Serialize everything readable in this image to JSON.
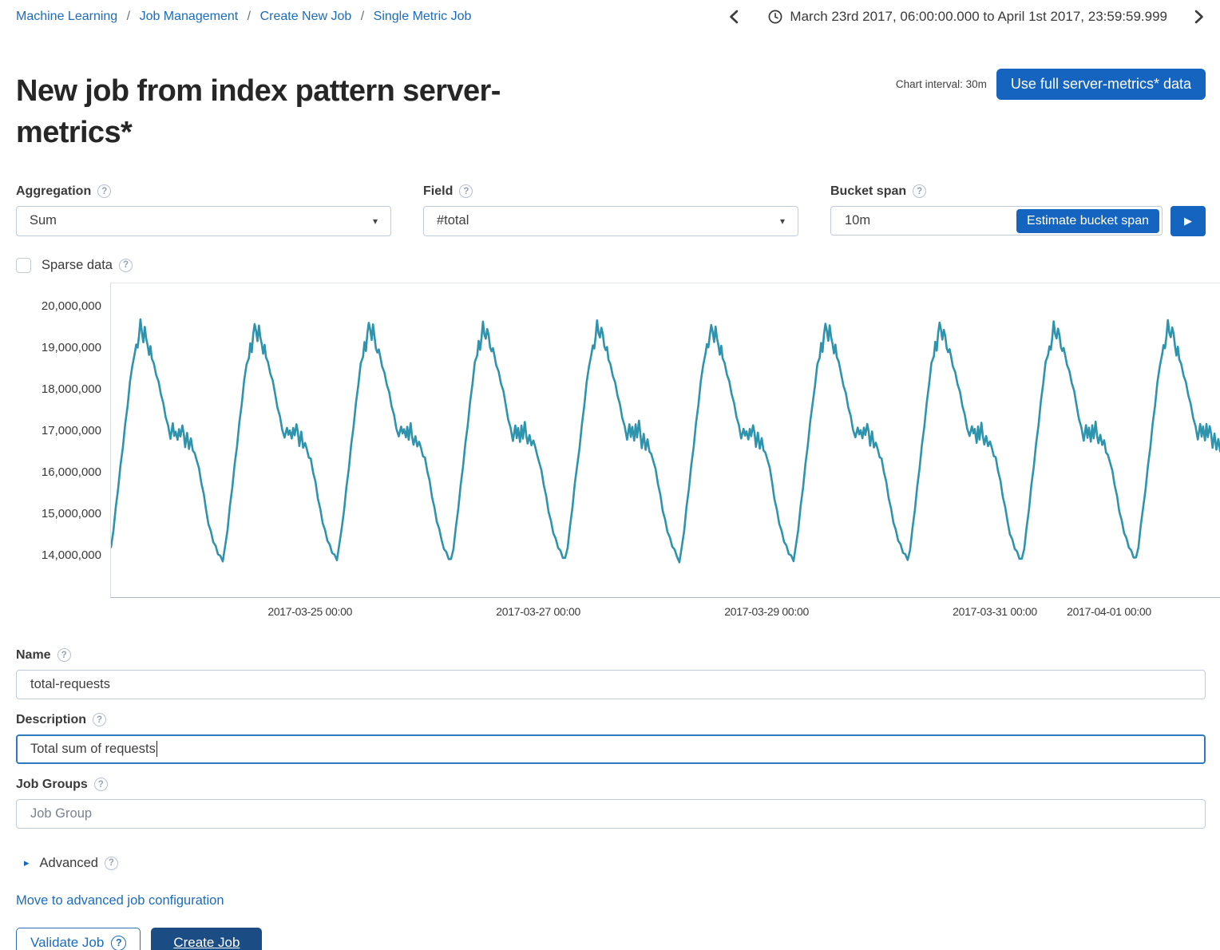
{
  "breadcrumb": {
    "items": [
      "Machine Learning",
      "Job Management",
      "Create New Job",
      "Single Metric Job"
    ],
    "separator": "/"
  },
  "timerange": {
    "label": "March 23rd 2017, 06:00:00.000 to April 1st 2017, 23:59:59.999"
  },
  "header": {
    "title": "New job from index pattern server-metrics*",
    "chart_interval_label": "Chart interval: 30m",
    "use_full_data_button": "Use full server-metrics* data"
  },
  "form": {
    "aggregation": {
      "label": "Aggregation",
      "value": "Sum"
    },
    "field": {
      "label": "Field",
      "value": "#total"
    },
    "bucket_span": {
      "label": "Bucket span",
      "value": "10m",
      "estimate_button": "Estimate bucket span"
    },
    "sparse_data": {
      "label": "Sparse data",
      "checked": false
    },
    "name": {
      "label": "Name",
      "value": "total-requests"
    },
    "description": {
      "label": "Description",
      "value": "Total sum of requests"
    },
    "job_groups": {
      "label": "Job Groups",
      "placeholder": "Job Group"
    },
    "advanced": {
      "label": "Advanced"
    }
  },
  "actions": {
    "move_link": "Move to advanced job configuration",
    "validate_button": "Validate Job",
    "create_button": "Create Job"
  },
  "ui": {
    "help_glyph": "?",
    "dropdown_arrow": "▾",
    "play_glyph": "▶",
    "advanced_arrow": "▸"
  },
  "colors": {
    "link_blue": "#1c6cbd",
    "primary_blue": "#1565c0",
    "dark_blue": "#1b4c83",
    "line_teal": "#2e94ad",
    "text_dark": "#3f3f3f",
    "input_border": "#c0ccda",
    "focus_blue": "#2f7abf"
  },
  "chart_data": {
    "type": "line",
    "series_color": "#2e94ad",
    "x_start": "2017-03-23 06:00",
    "x_end": "2017-04-01 23:59",
    "total_hours": 234,
    "days": 10,
    "day_start_offset_hours": 6,
    "ylim": [
      13000000,
      20550000
    ],
    "y_ticks": [
      {
        "value": 20000000,
        "label": "20,000,000"
      },
      {
        "value": 19000000,
        "label": "19,000,000"
      },
      {
        "value": 18000000,
        "label": "18,000,000"
      },
      {
        "value": 17000000,
        "label": "17,000,000"
      },
      {
        "value": 16000000,
        "label": "16,000,000"
      },
      {
        "value": 15000000,
        "label": "15,000,000"
      },
      {
        "value": 14000000,
        "label": "14,000,000"
      }
    ],
    "x_ticks": [
      {
        "hours": 42,
        "label": "2017-03-25 00:00"
      },
      {
        "hours": 90,
        "label": "2017-03-27 00:00"
      },
      {
        "hours": 138,
        "label": "2017-03-29 00:00"
      },
      {
        "hours": 186,
        "label": "2017-03-31 00:00"
      },
      {
        "hours": 210,
        "label": "2017-04-01 00:00"
      }
    ],
    "daily_pattern_hours_vs_millions": [
      [
        0,
        16.32
      ],
      [
        0.5,
        16.05
      ],
      [
        1,
        15.75
      ],
      [
        1.5,
        15.42
      ],
      [
        2,
        15.1
      ],
      [
        2.5,
        14.82
      ],
      [
        3,
        14.58
      ],
      [
        3.5,
        14.38
      ],
      [
        4,
        14.22
      ],
      [
        4.5,
        14.08
      ],
      [
        5,
        13.97
      ],
      [
        5.5,
        13.9
      ],
      [
        6,
        14.2
      ],
      [
        6.5,
        14.65
      ],
      [
        7,
        15.15
      ],
      [
        7.5,
        15.65
      ],
      [
        8,
        16.15
      ],
      [
        8.5,
        16.65
      ],
      [
        9,
        17.15
      ],
      [
        9.5,
        17.65
      ],
      [
        10,
        18.15
      ],
      [
        10.5,
        18.6
      ],
      [
        11,
        18.82
      ],
      [
        11.3,
        19.1
      ],
      [
        11.6,
        18.95
      ],
      [
        11.9,
        19.3
      ],
      [
        12.2,
        19.62
      ],
      [
        12.5,
        19.38
      ],
      [
        12.8,
        19.2
      ],
      [
        13.1,
        19.5
      ],
      [
        13.4,
        19.28
      ],
      [
        13.7,
        19.05
      ],
      [
        14,
        18.88
      ],
      [
        14.3,
        19.02
      ],
      [
        14.6,
        18.78
      ],
      [
        15,
        18.6
      ],
      [
        15.5,
        18.38
      ],
      [
        16,
        18.15
      ],
      [
        16.5,
        17.9
      ],
      [
        17,
        17.62
      ],
      [
        17.5,
        17.35
      ],
      [
        18,
        17.08
      ],
      [
        18.5,
        16.82
      ],
      [
        19,
        17.12
      ],
      [
        19.3,
        16.88
      ],
      [
        19.6,
        17.05
      ],
      [
        20,
        16.78
      ],
      [
        20.3,
        17.1
      ],
      [
        20.6,
        16.85
      ],
      [
        21,
        17.18
      ],
      [
        21.3,
        16.92
      ],
      [
        21.6,
        16.65
      ],
      [
        22,
        16.92
      ],
      [
        22.4,
        16.6
      ],
      [
        22.8,
        16.78
      ],
      [
        23.2,
        16.55
      ],
      [
        23.6,
        16.42
      ]
    ],
    "jitter_amplitude_millions": 0.07
  }
}
